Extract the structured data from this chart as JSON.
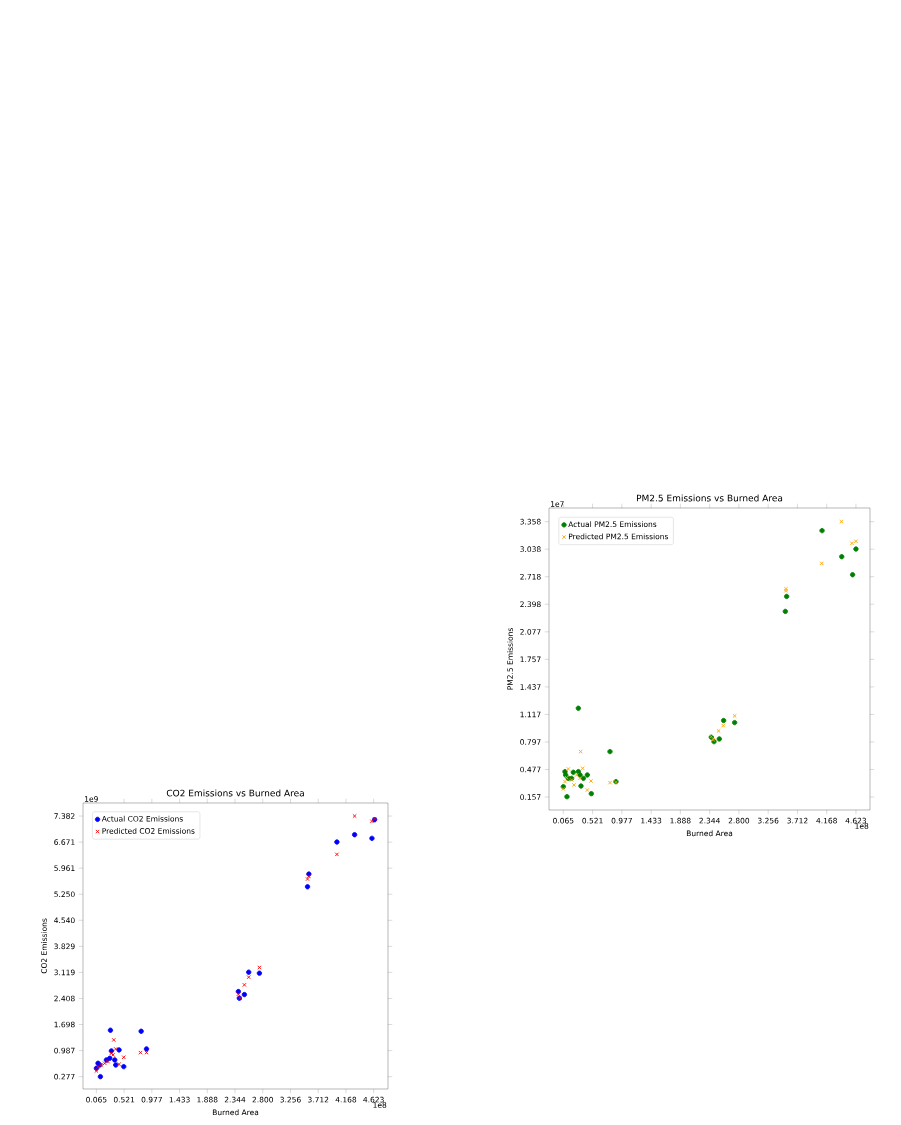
{
  "chart_data": [
    {
      "type": "scatter",
      "title": "PM2.5 Emissions vs Burned Area",
      "xlabel": "Burned Area",
      "ylabel": "PM2.5 Emissions",
      "annotations": [
        "1e7",
        "1e8"
      ],
      "legend": "top left",
      "xlim": [
        -0.158,
        4.842
      ],
      "ylim": [
        0.006,
        3.517
      ],
      "xticks": [
        0.065,
        0.521,
        0.977,
        1.433,
        1.888,
        2.344,
        {
          "value": 2.8,
          "label": "2.800"
        },
        3.256,
        3.712,
        4.168,
        4.623
      ],
      "yticks": [
        0.157,
        0.477,
        0.797,
        1.117,
        1.437,
        1.757,
        2.077,
        2.398,
        2.718,
        3.038,
        3.358
      ],
      "series": [
        {
          "name": "Actual PM2.5 Emissions",
          "color": "#008000",
          "marker": "circle",
          "x": [
            0.122,
            0.065,
            0.091,
            0.101,
            0.143,
            0.195,
            0.221,
            0.299,
            0.325,
            0.34,
            0.377,
            0.439,
            0.501,
            0.299,
            0.792,
            0.885,
            2.37,
            2.412,
            2.495,
            2.562,
            2.734,
            3.523,
            3.544,
            4.095,
            4.402,
            4.571,
            4.623
          ],
          "values": [
            0.161,
            0.277,
            0.452,
            0.413,
            0.374,
            0.374,
            0.444,
            0.452,
            0.413,
            0.285,
            0.374,
            0.413,
            0.196,
            1.189,
            0.685,
            0.336,
            0.852,
            0.801,
            0.832,
            1.046,
            1.022,
            2.315,
            2.489,
            3.254,
            2.951,
            2.741,
            3.04
          ]
        },
        {
          "name": "Predicted PM2.5 Emissions",
          "color": "#ffa500",
          "marker": "cross",
          "x": [
            0.065,
            0.091,
            0.117,
            0.143,
            0.195,
            0.231,
            0.273,
            0.335,
            0.366,
            0.325,
            0.439,
            0.496,
            0.792,
            0.885,
            2.37,
            2.401,
            2.484,
            2.557,
            2.734,
            3.533,
            3.533,
            4.09,
            4.397,
            4.561,
            4.623
          ],
          "values": [
            0.25,
            0.336,
            0.382,
            0.483,
            0.355,
            0.297,
            0.413,
            0.685,
            0.491,
            0.374,
            0.238,
            0.343,
            0.324,
            0.328,
            0.859,
            0.821,
            0.925,
            0.987,
            1.1,
            2.555,
            2.578,
            2.873,
            3.358,
            3.106,
            3.13
          ]
        }
      ]
    },
    {
      "type": "scatter",
      "title": "CO2 Emissions vs Burned Area",
      "xlabel": "Burned Area",
      "ylabel": "CO2 Emissions",
      "annotations": [
        "1e9",
        "1e8"
      ],
      "legend": "top left",
      "xlim": [
        -0.155,
        4.859
      ],
      "ylim": [
        -0.06,
        7.738
      ],
      "xticks": [
        0.065,
        0.521,
        0.977,
        1.433,
        1.888,
        2.344,
        {
          "value": 2.8,
          "label": "2.800"
        },
        3.256,
        3.712,
        4.168,
        4.623
      ],
      "yticks": [
        0.277,
        0.987,
        1.698,
        2.408,
        3.119,
        3.829,
        {
          "value": 4.54,
          "label": "4.540"
        },
        {
          "value": 5.25,
          "label": "5.250"
        },
        5.961,
        6.671,
        7.382
      ],
      "series": [
        {
          "name": "Actual CO2 Emissions",
          "color": "#0000ff",
          "marker": "circle",
          "x": [
            0.131,
            0.065,
            0.092,
            0.12,
            0.23,
            0.285,
            0.312,
            0.367,
            0.383,
            0.438,
            0.515,
            0.296,
            0.801,
            0.889,
            2.399,
            2.415,
            2.498,
            2.569,
            2.745,
            3.536,
            3.558,
            4.019,
            4.31,
            4.595,
            4.639
          ],
          "values": [
            0.277,
            0.504,
            0.641,
            0.595,
            0.732,
            0.777,
            0.978,
            0.732,
            0.595,
            1.005,
            0.55,
            1.542,
            1.514,
            1.032,
            2.597,
            2.415,
            2.515,
            3.125,
            3.098,
            5.454,
            5.8,
            6.674,
            6.874,
            6.774,
            7.283
          ]
        },
        {
          "name": "Predicted CO2 Emissions",
          "color": "#ff0000",
          "marker": "cross",
          "x": [
            0.065,
            0.092,
            0.147,
            0.202,
            0.257,
            0.312,
            0.34,
            0.351,
            0.383,
            0.438,
            0.515,
            0.79,
            0.889,
            2.399,
            2.426,
            2.498,
            2.569,
            2.745,
            3.536,
            3.558,
            4.019,
            4.31,
            4.595,
            4.639
          ],
          "values": [
            0.432,
            0.55,
            0.595,
            0.641,
            0.686,
            0.914,
            0.868,
            1.278,
            1.032,
            0.614,
            0.805,
            0.932,
            0.932,
            2.524,
            2.415,
            2.779,
            2.989,
            3.252,
            5.664,
            5.736,
            6.337,
            7.383,
            7.238,
            7.302
          ]
        }
      ]
    }
  ]
}
